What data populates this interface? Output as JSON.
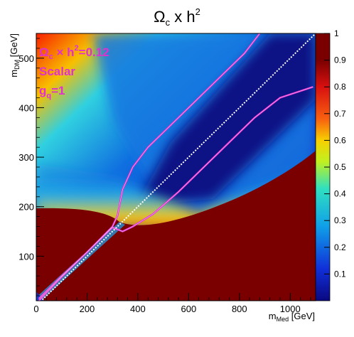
{
  "chart_data": {
    "type": "heatmap",
    "title": "Ω",
    "title_sub": "c",
    "title_rest": " x h",
    "title_sup": "2",
    "xlabel": "m",
    "xlabel_sub": "Med",
    "xlabel_rest": " [GeV]",
    "ylabel": "m",
    "ylabel_sub": "DM",
    "ylabel_rest": " [GeV]",
    "xlim": [
      0,
      1100
    ],
    "ylim": [
      10,
      550
    ],
    "zlim": [
      0,
      1
    ],
    "x_ticks": [
      0,
      200,
      400,
      600,
      800,
      1000
    ],
    "y_ticks": [
      100,
      200,
      300,
      400,
      500
    ],
    "z_ticks": [
      0.1,
      0.2,
      0.3,
      0.4,
      0.5,
      0.6,
      0.7,
      0.8,
      0.9,
      1
    ],
    "colormap": [
      "#0a0880",
      "#1030d8",
      "#10a0e8",
      "#30e0c0",
      "#c0f020",
      "#f8d000",
      "#f86010",
      "#d81010",
      "#7a0000"
    ],
    "annotations": {
      "line1": "Ω",
      "line1_sub": "c",
      "line1_rest": " × h",
      "line1_sup": "2",
      "line1_tail": "=0.12",
      "line2": "Scalar",
      "line3": "g",
      "line3_sub": "q",
      "line3_rest": "=1",
      "color": "#e030d0"
    },
    "contour_level": 0.12,
    "contour_color": "#e030d0",
    "contour_upper": [
      [
        10,
        14
      ],
      [
        100,
        60
      ],
      [
        200,
        108
      ],
      [
        300,
        160
      ],
      [
        320,
        182
      ],
      [
        340,
        235
      ],
      [
        380,
        280
      ],
      [
        440,
        320
      ],
      [
        520,
        360
      ],
      [
        620,
        410
      ],
      [
        720,
        460
      ],
      [
        820,
        510
      ],
      [
        880,
        550
      ]
    ],
    "contour_lower": [
      [
        10,
        10
      ],
      [
        100,
        58
      ],
      [
        200,
        108
      ],
      [
        300,
        158
      ],
      [
        340,
        150
      ],
      [
        380,
        160
      ],
      [
        460,
        185
      ],
      [
        560,
        230
      ],
      [
        660,
        280
      ],
      [
        760,
        330
      ],
      [
        860,
        380
      ],
      [
        960,
        420
      ],
      [
        1090,
        442
      ]
    ],
    "diagonal_line": [
      [
        0,
        0
      ],
      [
        1100,
        550
      ]
    ]
  }
}
